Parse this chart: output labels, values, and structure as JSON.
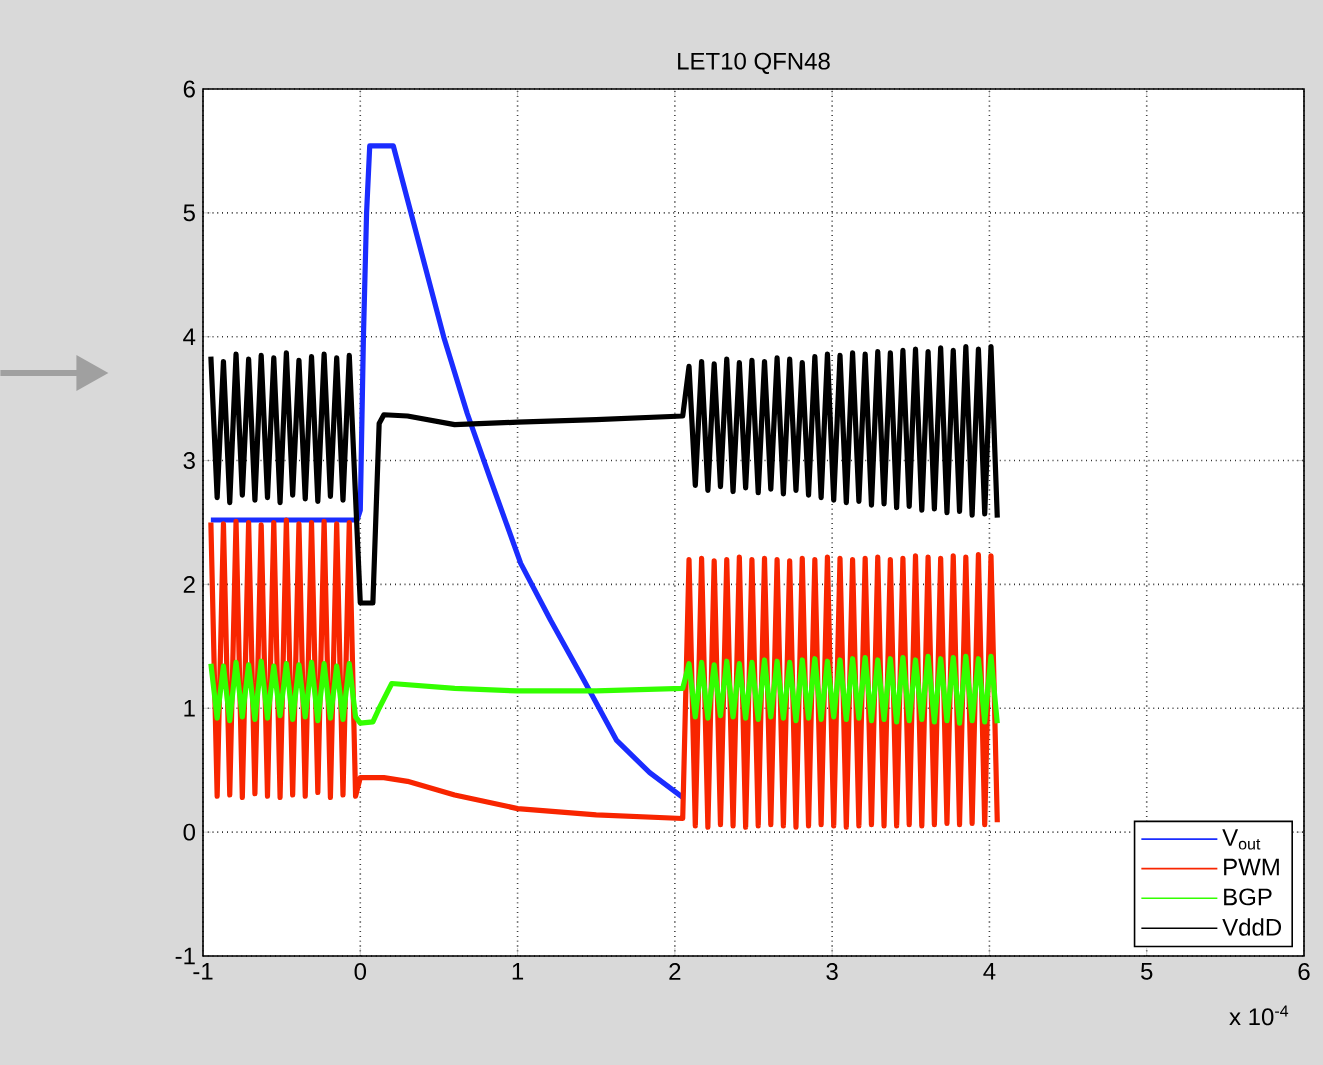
{
  "chart_data": {
    "type": "line",
    "title": "LET10 QFN48",
    "annotations": [
      "x 10$^{-4}$"
    ],
    "xlim": [
      -1,
      6
    ],
    "xticks": [
      -1,
      0,
      1,
      2,
      3,
      4,
      5,
      6
    ],
    "ylim": [
      -1,
      6
    ],
    "yticks": [
      -1,
      0,
      1,
      2,
      3,
      4,
      5,
      6
    ],
    "grid": true,
    "legend": "bottom right",
    "series": [
      {
        "name": "V$_{out}$",
        "color": "#1a2cff",
        "x": [
          -0.95,
          -0.5,
          -0.02,
          0.0,
          0.02,
          0.04,
          0.06,
          0.21,
          0.53,
          0.68,
          0.83,
          1.02,
          1.21,
          1.42,
          1.63,
          1.84,
          2.05
        ],
        "values": [
          2.52,
          2.52,
          2.52,
          2.6,
          4.0,
          5.0,
          5.54,
          5.54,
          4.0,
          3.38,
          2.84,
          2.17,
          1.71,
          1.23,
          0.74,
          0.48,
          0.28
        ]
      },
      {
        "name": "PWM",
        "color": "#f82500",
        "x": [
          -0.95,
          -0.91,
          -0.87,
          -0.83,
          -0.79,
          -0.75,
          -0.71,
          -0.67,
          -0.63,
          -0.59,
          -0.55,
          -0.51,
          -0.47,
          -0.43,
          -0.39,
          -0.35,
          -0.31,
          -0.27,
          -0.23,
          -0.19,
          -0.15,
          -0.11,
          -0.07,
          -0.03,
          0.0,
          0.05,
          0.15,
          0.3,
          0.6,
          1.0,
          1.5,
          2.05,
          2.09,
          2.13,
          2.17,
          2.21,
          2.25,
          2.29,
          2.33,
          2.37,
          2.41,
          2.45,
          2.49,
          2.53,
          2.57,
          2.61,
          2.65,
          2.69,
          2.73,
          2.77,
          2.81,
          2.85,
          2.89,
          2.93,
          2.97,
          3.01,
          3.05,
          3.09,
          3.13,
          3.17,
          3.21,
          3.25,
          3.29,
          3.33,
          3.37,
          3.41,
          3.45,
          3.49,
          3.53,
          3.57,
          3.61,
          3.65,
          3.69,
          3.73,
          3.77,
          3.81,
          3.85,
          3.89,
          3.93,
          3.97,
          4.01,
          4.05
        ],
        "values": [
          2.5,
          0.29,
          2.49,
          0.3,
          2.51,
          0.28,
          2.5,
          0.31,
          2.48,
          0.29,
          2.5,
          0.28,
          2.52,
          0.3,
          2.49,
          0.29,
          2.5,
          0.32,
          2.51,
          0.28,
          2.49,
          0.3,
          2.5,
          0.29,
          0.44,
          0.44,
          0.44,
          0.41,
          0.3,
          0.19,
          0.14,
          0.11,
          2.2,
          0.05,
          2.21,
          0.04,
          2.19,
          0.06,
          2.2,
          0.05,
          2.22,
          0.04,
          2.2,
          0.05,
          2.21,
          0.06,
          2.2,
          0.05,
          2.19,
          0.04,
          2.21,
          0.05,
          2.2,
          0.06,
          2.22,
          0.05,
          2.21,
          0.04,
          2.2,
          0.05,
          2.21,
          0.06,
          2.22,
          0.05,
          2.2,
          0.05,
          2.21,
          0.06,
          2.23,
          0.05,
          2.22,
          0.06,
          2.21,
          0.07,
          2.23,
          0.06,
          2.22,
          0.07,
          2.24,
          0.06,
          2.23,
          0.08
        ]
      },
      {
        "name": "BGP",
        "color": "#33ff00",
        "x": [
          -0.95,
          -0.91,
          -0.87,
          -0.83,
          -0.79,
          -0.75,
          -0.71,
          -0.67,
          -0.63,
          -0.59,
          -0.55,
          -0.51,
          -0.47,
          -0.43,
          -0.39,
          -0.35,
          -0.31,
          -0.27,
          -0.23,
          -0.19,
          -0.15,
          -0.11,
          -0.07,
          -0.03,
          0.0,
          0.08,
          0.12,
          0.2,
          0.6,
          1.0,
          1.5,
          2.05,
          2.09,
          2.13,
          2.17,
          2.21,
          2.25,
          2.29,
          2.33,
          2.37,
          2.41,
          2.45,
          2.49,
          2.53,
          2.57,
          2.61,
          2.65,
          2.69,
          2.73,
          2.77,
          2.81,
          2.85,
          2.89,
          2.93,
          2.97,
          3.01,
          3.05,
          3.09,
          3.13,
          3.17,
          3.21,
          3.25,
          3.29,
          3.33,
          3.37,
          3.41,
          3.45,
          3.49,
          3.53,
          3.57,
          3.61,
          3.65,
          3.69,
          3.73,
          3.77,
          3.81,
          3.85,
          3.89,
          3.93,
          3.97,
          4.01,
          4.05
        ],
        "values": [
          1.36,
          0.92,
          1.34,
          0.9,
          1.37,
          0.93,
          1.35,
          0.91,
          1.38,
          0.92,
          1.34,
          0.94,
          1.36,
          0.91,
          1.35,
          0.93,
          1.37,
          0.9,
          1.36,
          0.92,
          1.34,
          0.91,
          1.36,
          0.93,
          0.88,
          0.89,
          1.0,
          1.2,
          1.16,
          1.14,
          1.14,
          1.16,
          1.36,
          0.93,
          1.37,
          0.92,
          1.35,
          0.94,
          1.38,
          0.93,
          1.36,
          0.92,
          1.37,
          0.91,
          1.39,
          0.93,
          1.38,
          0.92,
          1.37,
          0.9,
          1.39,
          0.92,
          1.4,
          0.91,
          1.38,
          0.93,
          1.39,
          0.91,
          1.4,
          0.92,
          1.41,
          0.9,
          1.39,
          0.91,
          1.4,
          0.89,
          1.41,
          0.9,
          1.39,
          0.91,
          1.42,
          0.89,
          1.4,
          0.9,
          1.41,
          0.88,
          1.42,
          0.9,
          1.4,
          0.89,
          1.42,
          0.88
        ]
      },
      {
        "name": "VddD",
        "color": "#000000",
        "x": [
          -0.95,
          -0.91,
          -0.87,
          -0.83,
          -0.79,
          -0.75,
          -0.71,
          -0.67,
          -0.63,
          -0.59,
          -0.55,
          -0.51,
          -0.47,
          -0.43,
          -0.39,
          -0.35,
          -0.31,
          -0.27,
          -0.23,
          -0.19,
          -0.15,
          -0.11,
          -0.07,
          -0.03,
          0.0,
          0.08,
          0.12,
          0.15,
          0.3,
          0.6,
          1.0,
          1.5,
          2.05,
          2.09,
          2.13,
          2.17,
          2.21,
          2.25,
          2.29,
          2.33,
          2.37,
          2.41,
          2.45,
          2.49,
          2.53,
          2.57,
          2.61,
          2.65,
          2.69,
          2.73,
          2.77,
          2.81,
          2.85,
          2.89,
          2.93,
          2.97,
          3.01,
          3.05,
          3.09,
          3.13,
          3.17,
          3.21,
          3.25,
          3.29,
          3.33,
          3.37,
          3.41,
          3.45,
          3.49,
          3.53,
          3.57,
          3.61,
          3.65,
          3.69,
          3.73,
          3.77,
          3.81,
          3.85,
          3.89,
          3.93,
          3.97,
          4.01,
          4.05
        ],
        "values": [
          3.84,
          2.7,
          3.8,
          2.66,
          3.86,
          2.72,
          3.82,
          2.68,
          3.85,
          2.7,
          3.83,
          2.66,
          3.87,
          2.72,
          3.81,
          2.69,
          3.84,
          2.67,
          3.86,
          2.71,
          3.83,
          2.68,
          3.85,
          2.7,
          1.85,
          1.85,
          3.3,
          3.37,
          3.36,
          3.29,
          3.31,
          3.33,
          3.36,
          3.76,
          2.8,
          3.8,
          2.76,
          3.78,
          2.79,
          3.82,
          2.75,
          3.79,
          2.78,
          3.81,
          2.74,
          3.8,
          2.77,
          3.83,
          2.73,
          3.82,
          2.76,
          3.79,
          2.72,
          3.84,
          2.7,
          3.86,
          2.68,
          3.85,
          2.66,
          3.87,
          2.67,
          3.86,
          2.64,
          3.88,
          2.65,
          3.87,
          2.62,
          3.89,
          2.63,
          3.9,
          2.6,
          3.88,
          2.61,
          3.91,
          2.58,
          3.89,
          2.59,
          3.92,
          2.56,
          3.9,
          2.57,
          3.92,
          2.54
        ]
      }
    ]
  }
}
